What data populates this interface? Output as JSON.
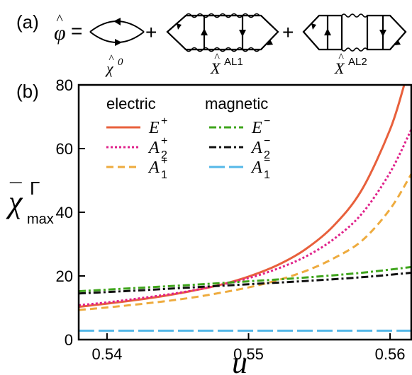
{
  "panel_a": {
    "label": "(a)",
    "phi_symbol": "φ",
    "hat": "^",
    "equals": "=",
    "plus": "+",
    "diagram_labels": [
      {
        "base": "χ",
        "sup": "0"
      },
      {
        "base": "X",
        "sup": "AL1"
      },
      {
        "base": "X",
        "sup": "AL2"
      }
    ]
  },
  "panel_b": {
    "label": "(b)"
  },
  "chart_data": {
    "type": "line",
    "xlabel": "u",
    "ylabel_base": "χ",
    "ylabel_bar": "¯",
    "ylabel_sup": "Γ",
    "ylabel_sub": "max",
    "xlim": [
      0.538,
      0.5615
    ],
    "ylim": [
      0,
      80
    ],
    "xticks": [
      0.54,
      0.55,
      0.56
    ],
    "xtick_labels": [
      "0.54",
      "0.55",
      "0.56"
    ],
    "yticks": [
      0,
      20,
      40,
      60,
      80
    ],
    "ytick_labels": [
      "0",
      "20",
      "40",
      "60",
      "80"
    ],
    "grid": false,
    "legend_groups": [
      "electric",
      "magnetic"
    ],
    "series": [
      {
        "name": "E+",
        "base": "E",
        "sup": "+",
        "sub": "",
        "group": "electric",
        "color": "#e8603c",
        "dash": "",
        "width": 3,
        "x": [
          0.538,
          0.54,
          0.542,
          0.544,
          0.546,
          0.548,
          0.55,
          0.552,
          0.554,
          0.556,
          0.558,
          0.56,
          0.561
        ],
        "y": [
          10.3,
          11.3,
          12.4,
          13.7,
          15.3,
          17.2,
          19.8,
          23.3,
          28.3,
          35.7,
          47.0,
          66.0,
          80.0
        ]
      },
      {
        "name": "A2+",
        "base": "A",
        "sup": "+",
        "sub": "2",
        "group": "electric",
        "color": "#e0218a",
        "dash": "3,3",
        "width": 3,
        "x": [
          0.538,
          0.54,
          0.542,
          0.544,
          0.546,
          0.548,
          0.55,
          0.552,
          0.554,
          0.556,
          0.558,
          0.56,
          0.5615
        ],
        "y": [
          10.8,
          11.7,
          12.8,
          14.0,
          15.4,
          17.2,
          19.3,
          22.2,
          26.0,
          31.5,
          39.5,
          52.5,
          66.0
        ]
      },
      {
        "name": "A1+",
        "base": "A",
        "sup": "+",
        "sub": "1",
        "group": "electric",
        "color": "#eeab3e",
        "dash": "10,6",
        "width": 3,
        "x": [
          0.538,
          0.54,
          0.542,
          0.544,
          0.546,
          0.548,
          0.55,
          0.552,
          0.554,
          0.556,
          0.558,
          0.56,
          0.5615
        ],
        "y": [
          9.3,
          10.1,
          11.0,
          12.0,
          13.2,
          14.7,
          16.4,
          18.6,
          21.5,
          25.5,
          31.0,
          41.0,
          52.0
        ]
      },
      {
        "name": "E-",
        "base": "E",
        "sup": "−",
        "sub": "",
        "group": "magnetic",
        "color": "#3fa51c",
        "dash": "10,4,3,4",
        "width": 3,
        "x": [
          0.538,
          0.542,
          0.546,
          0.55,
          0.554,
          0.558,
          0.5615
        ],
        "y": [
          15.2,
          16.2,
          17.2,
          18.3,
          19.5,
          21.0,
          22.8
        ]
      },
      {
        "name": "A2-",
        "base": "A",
        "sup": "−",
        "sub": "2",
        "group": "magnetic",
        "color": "#111111",
        "dash": "10,4,3,4",
        "width": 3,
        "x": [
          0.538,
          0.542,
          0.546,
          0.55,
          0.554,
          0.558,
          0.5615
        ],
        "y": [
          14.5,
          15.4,
          16.4,
          17.4,
          18.4,
          19.6,
          21.0
        ]
      },
      {
        "name": "A1-",
        "base": "A",
        "sup": "−",
        "sub": "1",
        "group": "magnetic",
        "color": "#55b8e8",
        "dash": "22,6",
        "width": 3,
        "x": [
          0.538,
          0.5615
        ],
        "y": [
          2.8,
          2.8
        ]
      }
    ]
  }
}
